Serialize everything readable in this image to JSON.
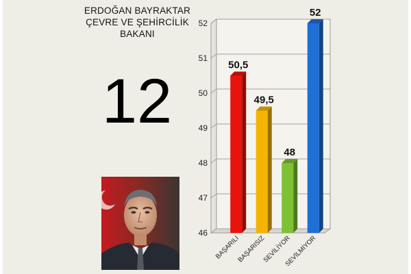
{
  "header": {
    "title_lines": [
      "ERDOĞAN BAYRAKTAR",
      "ÇEVRE VE ŞEHİRCİLİK",
      "BAKANI"
    ]
  },
  "rank": "12",
  "portrait": {
    "icon": "minister-portrait-photo"
  },
  "chart_data": {
    "type": "bar",
    "style": "3d",
    "title": "",
    "xlabel": "",
    "ylabel": "",
    "categories": [
      "BAŞARILI",
      "BAŞARISIZ",
      "SEVİLİYOR",
      "SEVİLMİYOR"
    ],
    "values": [
      50.5,
      49.5,
      48,
      52
    ],
    "value_labels": [
      "50,5",
      "49,5",
      "48",
      "52"
    ],
    "colors": [
      "#e8130c",
      "#f5b400",
      "#7ec132",
      "#1e6fd6"
    ],
    "ylim": [
      46,
      52
    ],
    "yticks": [
      46,
      47,
      48,
      49,
      50,
      51,
      52
    ],
    "grid": true
  }
}
